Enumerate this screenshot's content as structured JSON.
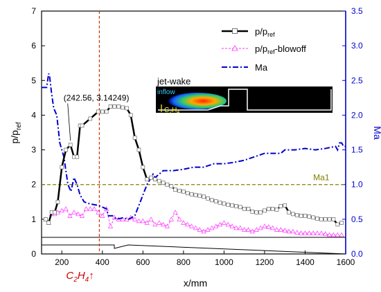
{
  "chart_data": {
    "type": "line",
    "xlabel": "x/mm",
    "ylabel_main": "p/p",
    "ylabel_sub": "ref",
    "y2label": "Ma",
    "xlim": [
      100,
      1600
    ],
    "ylim": [
      0,
      7
    ],
    "y2lim": [
      0,
      3.5
    ],
    "xticks": [
      200,
      400,
      600,
      800,
      1000,
      1200,
      1400,
      1600
    ],
    "yticks": [
      0,
      1,
      2,
      3,
      4,
      5,
      6,
      7
    ],
    "y2ticks": [
      0.0,
      0.5,
      1.0,
      1.5,
      2.0,
      2.5,
      3.0,
      3.5
    ],
    "y2tick_labels": [
      "0.0",
      "0.5",
      "1.0",
      "1.5",
      "2.0",
      "2.5",
      "3.0",
      "3.5"
    ],
    "colors": {
      "p": "#000000",
      "blowoff": "#ff33ff",
      "ma": "#0000cc",
      "ma1": "#808000",
      "injection": "#cc3300",
      "right_axis": "#0000cc"
    },
    "legend": {
      "placement": "top-right",
      "entries": [
        {
          "main": "p/p",
          "sub": "ref",
          "suffix": ""
        },
        {
          "main": "p/p",
          "sub": "ref",
          "suffix": "-blowoff"
        },
        {
          "main": "Ma",
          "sub": "",
          "suffix": ""
        }
      ]
    },
    "series": [
      {
        "key": "p",
        "axis": "left",
        "x": [
          120,
          135,
          150,
          165,
          180,
          200,
          220,
          242.56,
          260,
          275,
          290,
          300,
          340,
          380,
          400,
          420,
          440,
          460,
          480,
          500,
          520,
          540,
          560,
          580,
          600,
          620,
          640,
          660,
          680,
          700,
          720,
          740,
          760,
          780,
          800,
          820,
          840,
          860,
          880,
          900,
          920,
          940,
          960,
          980,
          1000,
          1020,
          1040,
          1060,
          1080,
          1100,
          1120,
          1140,
          1160,
          1180,
          1200,
          1220,
          1240,
          1260,
          1280,
          1300,
          1320,
          1340,
          1360,
          1380,
          1400,
          1420,
          1440,
          1460,
          1480,
          1500,
          1520,
          1540,
          1560,
          1580
        ],
        "y": [
          1.0,
          0.9,
          1.2,
          1.2,
          1.5,
          2.5,
          3.0,
          3.14249,
          2.8,
          2.8,
          3.7,
          3.7,
          3.9,
          4.1,
          4.1,
          4.1,
          4.25,
          4.25,
          4.25,
          4.22,
          4.2,
          4.0,
          3.35,
          3.0,
          2.5,
          2.15,
          2.2,
          2.15,
          2.1,
          2.05,
          2.0,
          1.95,
          1.85,
          1.82,
          1.8,
          1.75,
          1.72,
          1.7,
          1.68,
          1.65,
          1.6,
          1.55,
          1.52,
          1.48,
          1.45,
          1.42,
          1.4,
          1.38,
          1.35,
          1.3,
          1.3,
          1.22,
          1.2,
          1.2,
          1.25,
          1.3,
          1.3,
          1.28,
          1.38,
          1.4,
          1.2,
          1.15,
          1.12,
          1.1,
          1.1,
          1.08,
          1.05,
          1.02,
          1.0,
          1.0,
          1.0,
          1.0,
          0.85,
          0.9
        ]
      },
      {
        "key": "blowoff",
        "axis": "left",
        "x": [
          120,
          135,
          150,
          165,
          180,
          200,
          220,
          240,
          260,
          280,
          300,
          320,
          340,
          360,
          380,
          400,
          420,
          440,
          460,
          480,
          500,
          520,
          540,
          560,
          580,
          600,
          620,
          640,
          660,
          680,
          700,
          720,
          740,
          760,
          780,
          800,
          820,
          840,
          860,
          880,
          900,
          920,
          940,
          960,
          980,
          1000,
          1020,
          1040,
          1060,
          1080,
          1100,
          1120,
          1140,
          1160,
          1180,
          1200,
          1220,
          1240,
          1260,
          1280,
          1300,
          1320,
          1340,
          1360,
          1380,
          1400,
          1420,
          1440,
          1460,
          1480,
          1500,
          1520,
          1540,
          1560,
          1580
        ],
        "y": [
          1.0,
          0.9,
          1.15,
          1.15,
          1.2,
          1.25,
          1.3,
          1.1,
          1.2,
          1.15,
          1.1,
          1.3,
          1.3,
          1.3,
          1.2,
          1.1,
          1.3,
          0.8,
          1.05,
          1.0,
          1.0,
          1.0,
          1.05,
          1.0,
          0.95,
          0.95,
          0.9,
          1.0,
          0.85,
          0.9,
          0.85,
          0.8,
          1.0,
          1.2,
          1.0,
          0.9,
          0.85,
          0.8,
          0.75,
          0.7,
          0.65,
          0.7,
          0.75,
          0.8,
          0.85,
          0.9,
          0.85,
          0.8,
          0.75,
          0.75,
          0.7,
          0.7,
          0.65,
          0.7,
          0.75,
          0.8,
          0.78,
          0.75,
          0.7,
          0.7,
          0.68,
          0.65,
          0.65,
          0.62,
          0.6,
          0.6,
          0.6,
          0.6,
          0.6,
          0.6,
          0.58,
          0.55,
          0.55,
          0.55,
          0.55
        ]
      },
      {
        "key": "ma",
        "axis": "right",
        "x": [
          100,
          125,
          135,
          140,
          150,
          160,
          175,
          190,
          210,
          230,
          245,
          260,
          275,
          290,
          310,
          340,
          380,
          420,
          430,
          450,
          470,
          500,
          530,
          560,
          580,
          600,
          620,
          640,
          650,
          660,
          700,
          750,
          800,
          850,
          900,
          950,
          1000,
          1050,
          1100,
          1150,
          1200,
          1250,
          1280,
          1300,
          1350,
          1400,
          1450,
          1500,
          1550,
          1560,
          1570,
          1580,
          1590,
          1600
        ],
        "y": [
          2.4,
          2.4,
          2.6,
          2.55,
          2.3,
          2.1,
          2.0,
          1.6,
          1.4,
          1.0,
          0.9,
          1.1,
          1.0,
          0.85,
          0.75,
          0.72,
          0.7,
          0.65,
          0.55,
          0.55,
          0.5,
          0.52,
          0.5,
          0.55,
          0.7,
          0.85,
          1.0,
          1.1,
          1.15,
          1.1,
          1.2,
          1.2,
          1.22,
          1.25,
          1.25,
          1.3,
          1.3,
          1.32,
          1.35,
          1.4,
          1.45,
          1.45,
          1.45,
          1.5,
          1.5,
          1.52,
          1.5,
          1.52,
          1.55,
          1.5,
          1.6,
          1.6,
          1.55,
          1.55
        ]
      }
    ],
    "reference_line": {
      "label": "Ma1",
      "y": 2.0
    },
    "injection": {
      "x": 385
    },
    "annotation": {
      "text": "(242.56, 3.14249)",
      "x": 242.56,
      "y": 3.14249
    },
    "inset": {
      "title": "jet-wake",
      "inflow_label": "inflow",
      "fuel_main": "C",
      "fuel_sub1": "2",
      "fuel_mid": "H",
      "fuel_sub2": "4"
    },
    "xaxis_fuel": {
      "main": "C",
      "sub1": "2",
      "mid": "H",
      "sub2": "4",
      "arrow": "↑"
    }
  }
}
